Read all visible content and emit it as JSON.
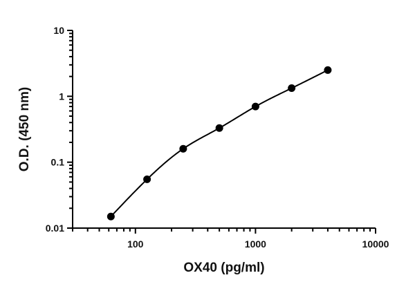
{
  "chart_data": {
    "type": "scatter",
    "title": "",
    "xlabel": "OX40 (pg/ml)",
    "ylabel": "O.D. (450 nm)",
    "xscale": "log",
    "yscale": "log",
    "xlim": [
      30,
      10000
    ],
    "ylim": [
      0.01,
      10
    ],
    "x_ticks": [
      100,
      1000,
      10000
    ],
    "x_tick_labels": [
      "100",
      "1000",
      "10000"
    ],
    "y_ticks": [
      0.01,
      0.1,
      1,
      10
    ],
    "y_tick_labels": [
      "0.01",
      "0.1",
      "1",
      "10"
    ],
    "grid": false,
    "legend": "none",
    "colors": {
      "points": "#000000",
      "line": "#000000",
      "axes": "#000000"
    },
    "series": [
      {
        "x": [
          62.5,
          125,
          250,
          500,
          1000,
          2000,
          4000
        ],
        "y": [
          0.015,
          0.055,
          0.16,
          0.33,
          0.7,
          1.33,
          2.5
        ]
      }
    ],
    "fit_curve": true
  }
}
